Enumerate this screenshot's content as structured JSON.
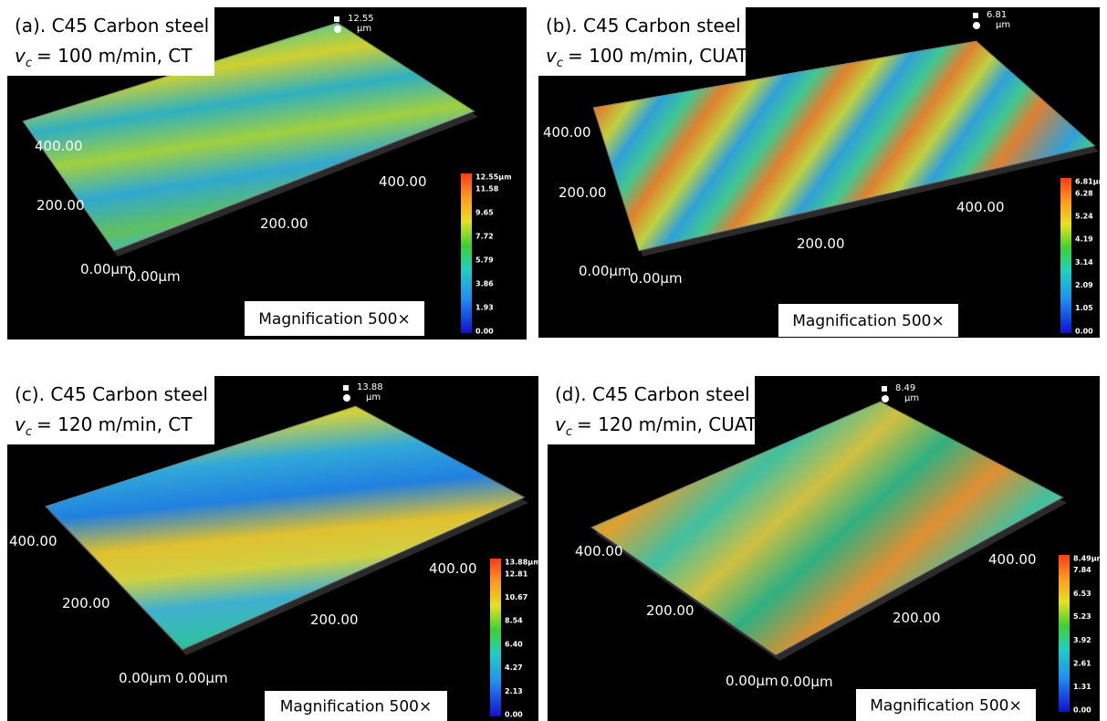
{
  "panels": [
    {
      "title": "(a). C45 Carbon steel",
      "speed_symbol": "v",
      "speed_subscript": "c",
      "speed_text": "= 100 m/min, CT",
      "peak_value": "12.55",
      "peak_unit": "µm",
      "axis_labels": [
        "400.00",
        "200.00",
        "0.00µm",
        "0.00µm",
        "200.00",
        "400.00"
      ],
      "colorbar_labels": [
        "12.55µm",
        "11.58",
        "9.65",
        "7.72",
        "5.79",
        "3.86",
        "1.93",
        "0.00"
      ],
      "magnification": "Magnification 500×"
    },
    {
      "title": "(b). C45 Carbon steel",
      "speed_symbol": "v",
      "speed_subscript": "c",
      "speed_text": "= 100 m/min, CUAT",
      "peak_value": "6.81",
      "peak_unit": "µm",
      "axis_labels": [
        "400.00",
        "200.00",
        "0.00µm",
        "0.00µm",
        "200.00",
        "400.00"
      ],
      "colorbar_labels": [
        "6.81µm",
        "6.28",
        "5.24",
        "4.19",
        "3.14",
        "2.09",
        "1.05",
        "0.00"
      ],
      "magnification": "Magnification 500×"
    },
    {
      "title": "(c). C45 Carbon steel",
      "speed_symbol": "v",
      "speed_subscript": "c",
      "speed_text": "= 120 m/min, CT",
      "peak_value": "13.88",
      "peak_unit": "µm",
      "axis_labels": [
        "400.00",
        "200.00",
        "0.00µm",
        "0.00µm",
        "200.00",
        "400.00"
      ],
      "colorbar_labels": [
        "13.88µm",
        "12.81",
        "10.67",
        "8.54",
        "6.40",
        "4.27",
        "2.13",
        "0.00"
      ],
      "magnification": "Magnification 500×"
    },
    {
      "title": "(d). C45 Carbon steel",
      "speed_symbol": "v",
      "speed_subscript": "c",
      "speed_text": "= 120 m/min, CUAT",
      "peak_value": "8.49",
      "peak_unit": "µm",
      "axis_labels": [
        "400.00",
        "200.00",
        "0.00µm",
        "0.00µm",
        "200.00",
        "400.00"
      ],
      "colorbar_labels": [
        "8.49µm",
        "7.84",
        "6.53",
        "5.23",
        "3.92",
        "2.61",
        "1.31",
        "0.00"
      ],
      "magnification": "Magnification 500×"
    }
  ]
}
